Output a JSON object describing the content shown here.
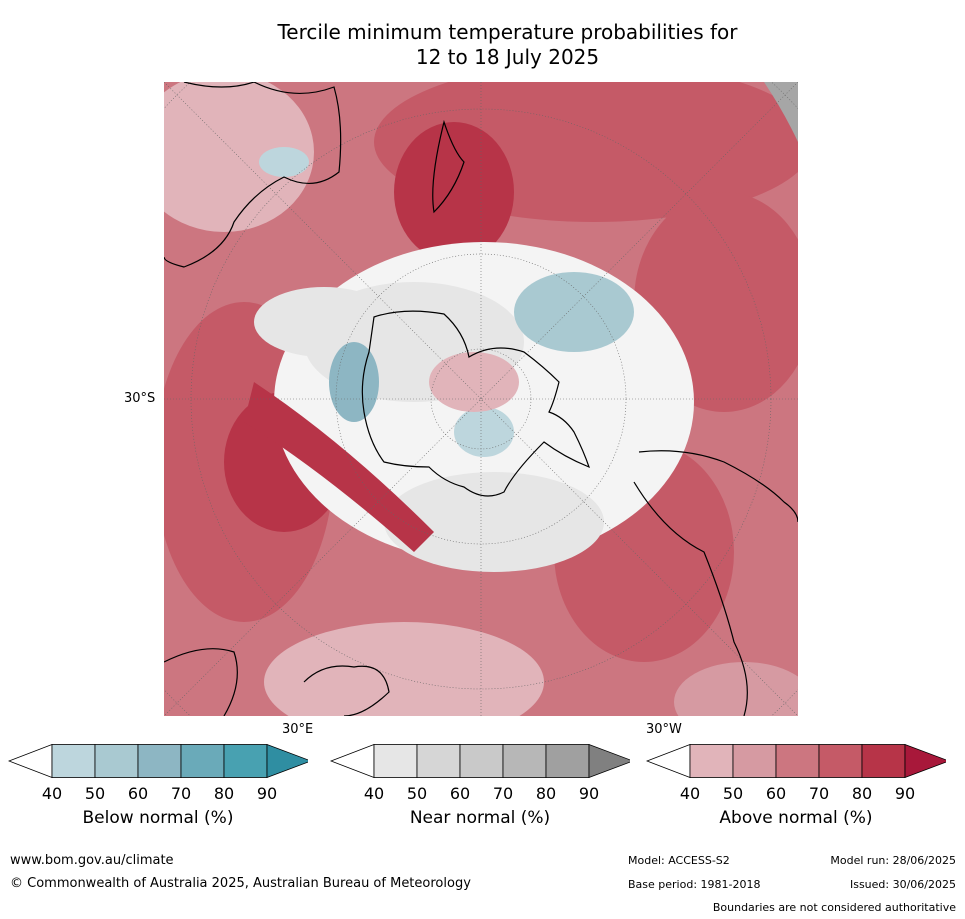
{
  "title": {
    "line1": "Tercile minimum temperature probabilities for",
    "line2": "12 to 18 July 2025"
  },
  "map": {
    "projection": "south-polar",
    "lat_label": "30°S",
    "lon_label_east": "30°E",
    "lon_label_west": "30°W",
    "land_mask_color": "#a6a6a6"
  },
  "colorbars": [
    {
      "label": "Below normal (%)",
      "ticks": [
        "40",
        "50",
        "60",
        "70",
        "80",
        "90"
      ],
      "colors": [
        "#ffffff",
        "#bdd6dd",
        "#a9c9d1",
        "#8db6c3",
        "#6aaab9",
        "#48a1b1",
        "#2f8ea2"
      ]
    },
    {
      "label": "Near normal (%)",
      "ticks": [
        "40",
        "50",
        "60",
        "70",
        "80",
        "90"
      ],
      "colors": [
        "#ffffff",
        "#e6e6e6",
        "#d6d6d6",
        "#c9c9c9",
        "#b7b7b7",
        "#a0a0a0",
        "#808080"
      ]
    },
    {
      "label": "Above normal (%)",
      "ticks": [
        "40",
        "50",
        "60",
        "70",
        "80",
        "90"
      ],
      "colors": [
        "#ffffff",
        "#e1b4ba",
        "#d69aa2",
        "#cc7680",
        "#c55a67",
        "#b73448",
        "#a8183a"
      ]
    }
  ],
  "footer": {
    "website": "www.bom.gov.au/climate",
    "copyright": "© Commonwealth of Australia 2025, Australian Bureau of Meteorology",
    "model": "Model: ACCESS-S2",
    "model_run": "Model run: 28/06/2025",
    "base_period": "Base period: 1981-2018",
    "issued": "Issued: 30/06/2025",
    "disclaimer": "Boundaries are not considered authoritative"
  }
}
